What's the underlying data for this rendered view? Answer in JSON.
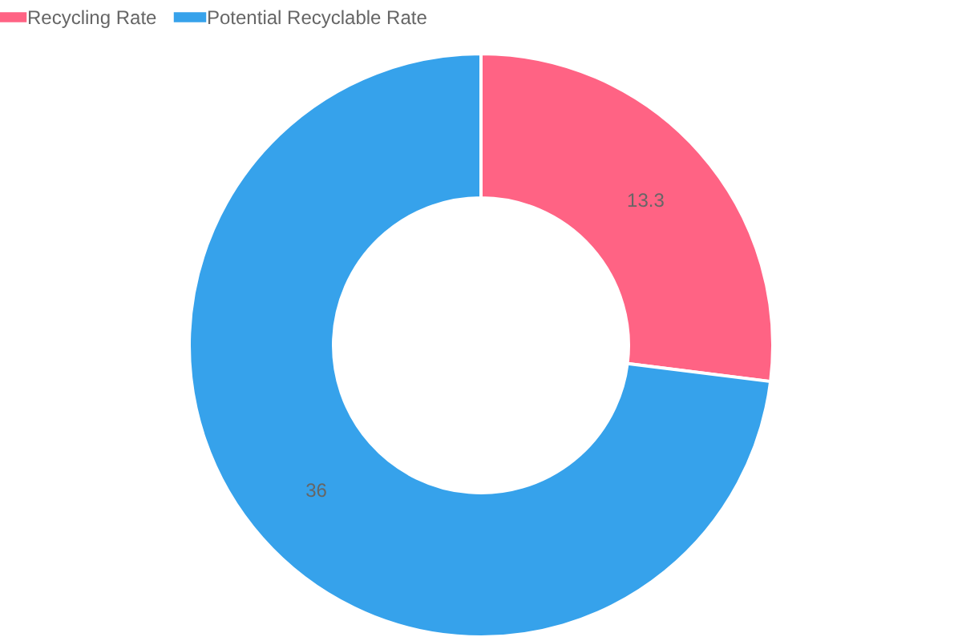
{
  "chart_data": {
    "type": "donut",
    "categories": [
      "Recycling Rate",
      "Potential Recyclable Rate"
    ],
    "values": [
      13.3,
      36
    ],
    "colors": [
      "#ff6384",
      "#36a2eb"
    ],
    "legend": "top",
    "data_labels": true
  }
}
